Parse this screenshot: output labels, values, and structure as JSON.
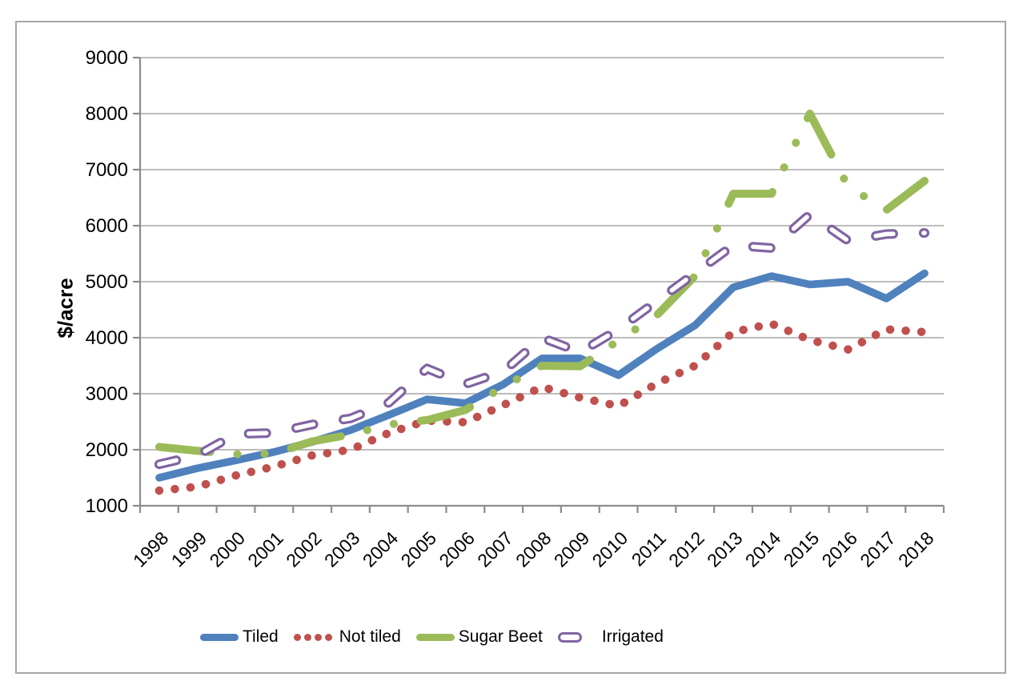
{
  "figure": {
    "background": "#ffffff",
    "frame_color": "#a6a6a6",
    "grid_color": "#a6a6a6",
    "axis_color": "#8c8c8c",
    "text_color": "#000000"
  },
  "chart_data": {
    "type": "line",
    "title": "",
    "xlabel": "",
    "ylabel": "$/acre",
    "grid": true,
    "legend_position": "bottom",
    "ylim": [
      1000,
      9000
    ],
    "y_axis": {
      "min": 1000,
      "max": 9000,
      "step": 1000,
      "ticks": [
        1000,
        2000,
        3000,
        4000,
        5000,
        6000,
        7000,
        8000,
        9000
      ]
    },
    "categories": [
      "1998",
      "1999",
      "2000",
      "2001",
      "2002",
      "2003",
      "2004",
      "2005",
      "2006",
      "2007",
      "2008",
      "2009",
      "2010",
      "2011",
      "2012",
      "2013",
      "2014",
      "2015",
      "2016",
      "2017",
      "2018"
    ],
    "series": [
      {
        "name": "Tiled",
        "color": "#4f81bd",
        "style": "solid",
        "values": [
          1500,
          1670,
          1810,
          1960,
          2140,
          2350,
          2620,
          2900,
          2830,
          3170,
          3630,
          3630,
          3330,
          3800,
          4220,
          4900,
          5100,
          4950,
          5000,
          4700,
          5150
        ]
      },
      {
        "name": "Not tiled",
        "color": "#c0504d",
        "style": "dotted",
        "values": [
          1270,
          1340,
          1540,
          1700,
          1900,
          2000,
          2300,
          2520,
          2490,
          2800,
          3120,
          2930,
          2780,
          3180,
          3500,
          4100,
          4250,
          3960,
          3790,
          4150,
          4100
        ]
      },
      {
        "name": "Sugar Beet",
        "color": "#9bbb59",
        "style": "long-dash-dot-dot",
        "values": [
          2050,
          1980,
          1920,
          1930,
          2150,
          2270,
          2450,
          2530,
          2710,
          3130,
          3500,
          3490,
          3950,
          4400,
          5100,
          6570,
          6570,
          8000,
          6700,
          6280,
          6800
        ]
      },
      {
        "name": "Irrigated",
        "color": "#8064a2",
        "style": "hollow-dash",
        "values": [
          1740,
          1900,
          2280,
          2300,
          2450,
          2560,
          2840,
          3450,
          3170,
          3400,
          4000,
          3740,
          4150,
          4650,
          5150,
          5650,
          5600,
          6200,
          5730,
          5850,
          5870
        ]
      }
    ]
  }
}
